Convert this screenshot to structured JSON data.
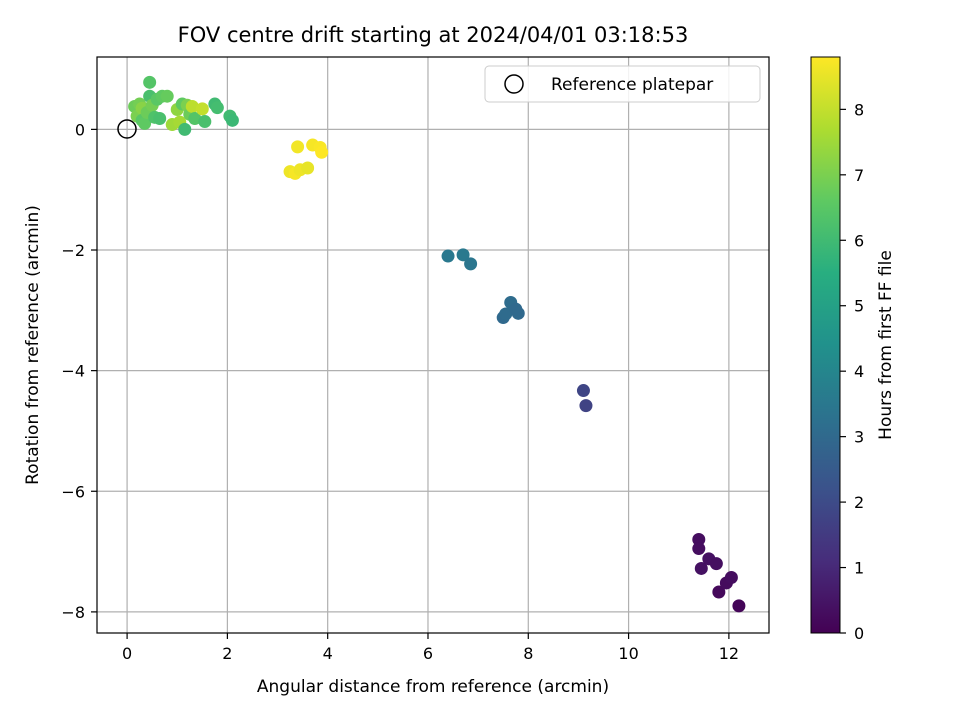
{
  "chart_data": {
    "type": "scatter",
    "title": "FOV centre drift starting at 2024/04/01 03:18:53",
    "xlabel": "Angular distance from reference (arcmin)",
    "ylabel": "Rotation from reference (arcmin)",
    "xlim": [
      -0.6,
      12.8
    ],
    "ylim": [
      -8.35,
      1.2
    ],
    "x_ticks": [
      0,
      2,
      4,
      6,
      8,
      10,
      12
    ],
    "y_ticks": [
      0,
      -2,
      -4,
      -6,
      -8
    ],
    "x_tick_labels": [
      "0",
      "2",
      "4",
      "6",
      "8",
      "10",
      "12"
    ],
    "y_tick_labels": [
      "0",
      "−2",
      "−4",
      "−6",
      "−8"
    ],
    "grid": true,
    "colormap": "viridis",
    "colorbar": {
      "label": "Hours from first FF file",
      "range": [
        0,
        8.8
      ],
      "ticks": [
        0,
        1,
        2,
        3,
        4,
        5,
        6,
        7,
        8
      ],
      "tick_labels": [
        "0",
        "1",
        "2",
        "3",
        "4",
        "5",
        "6",
        "7",
        "8"
      ]
    },
    "legend": {
      "position": "upper right",
      "entries": [
        {
          "label": "Reference platepar",
          "marker": "open-circle",
          "color": "#000000"
        }
      ]
    },
    "reference_point": {
      "x": 0,
      "y": 0
    },
    "series": [
      {
        "points": [
          {
            "x": 11.4,
            "y": -6.8,
            "c": 0.3
          },
          {
            "x": 11.4,
            "y": -6.95,
            "c": 0.3
          },
          {
            "x": 11.45,
            "y": -7.28,
            "c": 0.4
          },
          {
            "x": 11.6,
            "y": -7.12,
            "c": 0.4
          },
          {
            "x": 11.75,
            "y": -7.2,
            "c": 0.35
          },
          {
            "x": 11.8,
            "y": -7.67,
            "c": 0.2
          },
          {
            "x": 11.95,
            "y": -7.52,
            "c": 0.25
          },
          {
            "x": 12.05,
            "y": -7.43,
            "c": 0.3
          },
          {
            "x": 12.2,
            "y": -7.9,
            "c": 0.1
          },
          {
            "x": 9.1,
            "y": -4.33,
            "c": 1.8
          },
          {
            "x": 9.15,
            "y": -4.58,
            "c": 1.75
          },
          {
            "x": 6.4,
            "y": -2.1,
            "c": 3.5
          },
          {
            "x": 6.7,
            "y": -2.08,
            "c": 3.55
          },
          {
            "x": 6.85,
            "y": -2.23,
            "c": 3.45
          },
          {
            "x": 7.5,
            "y": -3.12,
            "c": 3.0
          },
          {
            "x": 7.55,
            "y": -3.06,
            "c": 3.05
          },
          {
            "x": 7.65,
            "y": -2.87,
            "c": 3.1
          },
          {
            "x": 7.75,
            "y": -2.98,
            "c": 3.0
          },
          {
            "x": 7.8,
            "y": -3.05,
            "c": 3.0
          },
          {
            "x": 3.25,
            "y": -0.7,
            "c": 8.6
          },
          {
            "x": 3.35,
            "y": -0.73,
            "c": 8.7
          },
          {
            "x": 3.45,
            "y": -0.67,
            "c": 8.6
          },
          {
            "x": 3.6,
            "y": -0.64,
            "c": 8.5
          },
          {
            "x": 3.4,
            "y": -0.29,
            "c": 8.65
          },
          {
            "x": 3.7,
            "y": -0.26,
            "c": 8.7
          },
          {
            "x": 3.85,
            "y": -0.3,
            "c": 8.75
          },
          {
            "x": 3.88,
            "y": -0.38,
            "c": 8.8
          },
          {
            "x": 0.15,
            "y": 0.38,
            "c": 6.8
          },
          {
            "x": 0.2,
            "y": 0.22,
            "c": 7.0
          },
          {
            "x": 0.25,
            "y": 0.42,
            "c": 6.9
          },
          {
            "x": 0.3,
            "y": 0.35,
            "c": 7.2
          },
          {
            "x": 0.3,
            "y": 0.15,
            "c": 6.5
          },
          {
            "x": 0.35,
            "y": 0.1,
            "c": 6.6
          },
          {
            "x": 0.4,
            "y": 0.28,
            "c": 6.8
          },
          {
            "x": 0.45,
            "y": 0.78,
            "c": 6.4
          },
          {
            "x": 0.45,
            "y": 0.55,
            "c": 6.2
          },
          {
            "x": 0.5,
            "y": 0.4,
            "c": 6.9
          },
          {
            "x": 0.55,
            "y": 0.2,
            "c": 6.3
          },
          {
            "x": 0.6,
            "y": 0.5,
            "c": 6.5
          },
          {
            "x": 0.65,
            "y": 0.18,
            "c": 6.2
          },
          {
            "x": 0.7,
            "y": 0.55,
            "c": 6.6
          },
          {
            "x": 0.8,
            "y": 0.55,
            "c": 6.7
          },
          {
            "x": 0.9,
            "y": 0.08,
            "c": 7.5
          },
          {
            "x": 1.0,
            "y": 0.33,
            "c": 7.3
          },
          {
            "x": 1.05,
            "y": 0.12,
            "c": 7.6
          },
          {
            "x": 1.1,
            "y": 0.42,
            "c": 6.6
          },
          {
            "x": 1.15,
            "y": 0.0,
            "c": 6.0
          },
          {
            "x": 1.2,
            "y": 0.4,
            "c": 7.0
          },
          {
            "x": 1.25,
            "y": 0.25,
            "c": 6.8
          },
          {
            "x": 1.3,
            "y": 0.38,
            "c": 7.9
          },
          {
            "x": 1.35,
            "y": 0.18,
            "c": 6.4
          },
          {
            "x": 1.5,
            "y": 0.34,
            "c": 8.0
          },
          {
            "x": 1.55,
            "y": 0.13,
            "c": 6.2
          },
          {
            "x": 1.75,
            "y": 0.42,
            "c": 6.0
          },
          {
            "x": 1.8,
            "y": 0.36,
            "c": 6.1
          },
          {
            "x": 2.05,
            "y": 0.22,
            "c": 6.0
          },
          {
            "x": 2.1,
            "y": 0.15,
            "c": 5.9
          }
        ]
      }
    ]
  }
}
